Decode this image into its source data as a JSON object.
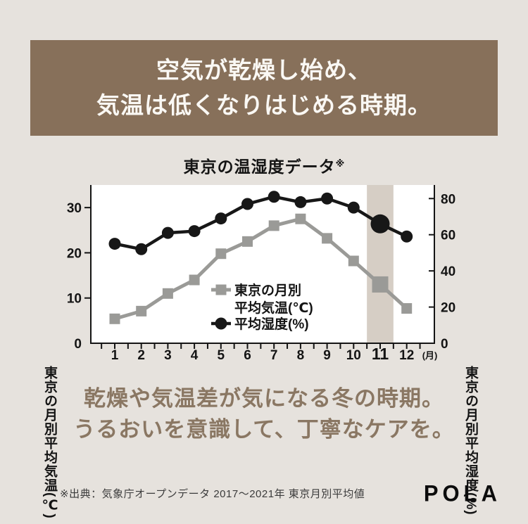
{
  "page": {
    "bg": "#e6e2dd"
  },
  "header": {
    "bg": "#87705a",
    "text_color": "#faf8f4",
    "lines": [
      "空気が乾燥し始め、",
      "気温は低くなりはじめる時期。"
    ]
  },
  "chart": {
    "title": "東京の温湿度データ",
    "reference_mark": "※",
    "left_axis_title": "東京の月別平均気温(℃)",
    "right_axis_title": "東京の月別平均湿度(%)",
    "x_unit_label": "(月)"
  },
  "chart_data": {
    "type": "line",
    "x": [
      1,
      2,
      3,
      4,
      5,
      6,
      7,
      8,
      9,
      10,
      11,
      12
    ],
    "xlabel": "月",
    "series": [
      {
        "name": "東京の月別平均気温(℃)",
        "axis": "left",
        "marker": "square",
        "color": "#9a9a97",
        "values": [
          5.4,
          7.1,
          11.0,
          14.0,
          19.8,
          22.5,
          26.0,
          27.5,
          23.2,
          18.2,
          13.0,
          7.7
        ]
      },
      {
        "name": "平均湿度(%)",
        "axis": "right",
        "marker": "circle",
        "color": "#171717",
        "values": [
          55,
          52,
          61,
          62,
          69,
          77,
          81,
          78,
          80,
          75,
          66,
          59
        ]
      }
    ],
    "left_axis": {
      "ticks": [
        0,
        10,
        20,
        30
      ],
      "range": [
        0,
        35
      ]
    },
    "right_axis": {
      "ticks": [
        0,
        20,
        40,
        60,
        80
      ],
      "range": [
        0,
        87.5
      ]
    },
    "highlight": {
      "month": 11,
      "color": "#d6cec5"
    },
    "emphasized_month": 11,
    "legend": [
      {
        "lines": [
          "東京の月別",
          "平均気温(℃)"
        ],
        "marker": "square"
      },
      {
        "lines": [
          "平均湿度(%)"
        ],
        "marker": "circle"
      }
    ],
    "grid": false,
    "legend_position": "inside-bottom-center"
  },
  "message": {
    "color": "#8a7763",
    "lines": [
      "乾燥や気温差が気になる冬の時期。",
      "うるおいを意識して、丁寧なケアを。"
    ]
  },
  "footer": {
    "source": "※出典：気象庁オープンデータ 2017～2021年 東京月別平均値",
    "logo": "POLA"
  }
}
